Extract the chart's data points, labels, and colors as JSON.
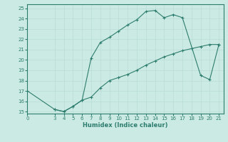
{
  "xlabel": "Humidex (Indice chaleur)",
  "xlim": [
    0,
    21.5
  ],
  "ylim": [
    14.8,
    25.4
  ],
  "yticks": [
    15,
    16,
    17,
    18,
    19,
    20,
    21,
    22,
    23,
    24,
    25
  ],
  "xticks": [
    0,
    3,
    4,
    5,
    6,
    7,
    8,
    9,
    10,
    11,
    12,
    13,
    14,
    15,
    16,
    17,
    18,
    19,
    20,
    21
  ],
  "line_color": "#2d7d6e",
  "bg_color": "#cceae4",
  "grid_color": "#b8ddd6",
  "curve1_x": [
    0,
    3,
    4,
    5,
    6,
    7,
    8,
    9,
    10,
    11,
    12,
    13,
    14,
    15,
    16,
    17,
    19,
    20,
    21
  ],
  "curve1_y": [
    17.0,
    15.2,
    15.0,
    15.5,
    16.1,
    20.2,
    21.7,
    22.2,
    22.8,
    23.4,
    23.9,
    24.7,
    24.8,
    24.1,
    24.4,
    24.1,
    18.5,
    18.1,
    21.5
  ],
  "curve2_x": [
    3,
    4,
    5,
    6,
    7,
    8,
    9,
    10,
    11,
    12,
    13,
    14,
    15,
    16,
    17,
    18,
    19,
    20,
    21
  ],
  "curve2_y": [
    15.2,
    15.0,
    15.5,
    16.1,
    16.4,
    17.3,
    18.0,
    18.3,
    18.6,
    19.0,
    19.5,
    19.9,
    20.3,
    20.6,
    20.9,
    21.1,
    21.3,
    21.5,
    21.5
  ]
}
